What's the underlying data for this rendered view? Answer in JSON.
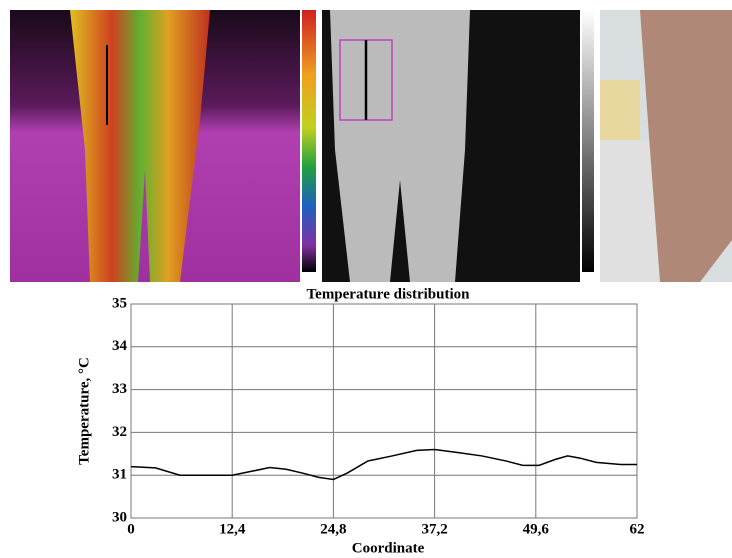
{
  "chart_data": {
    "type": "line",
    "title": "Temperature distribution",
    "x_label": "Coordinate",
    "y_label": "Temperature, °C",
    "x": [
      0,
      3,
      6,
      9,
      12.4,
      15,
      17,
      19,
      21,
      23,
      24.8,
      26.5,
      29,
      32,
      35,
      37.2,
      40,
      43,
      46,
      48,
      50,
      52,
      53.5,
      55,
      57,
      60,
      62
    ],
    "series": [
      {
        "color": "#000000",
        "values": [
          31.2,
          31.17,
          31.0,
          31.0,
          31.0,
          31.1,
          31.18,
          31.14,
          31.05,
          30.95,
          30.9,
          31.05,
          31.33,
          31.45,
          31.58,
          31.6,
          31.53,
          31.45,
          31.33,
          31.23,
          31.23,
          31.37,
          31.45,
          31.4,
          31.3,
          31.25,
          31.25
        ]
      }
    ],
    "xlim": [
      0,
      62
    ],
    "ylim": [
      30,
      35
    ],
    "xticks": [
      0,
      {
        "value": 12.4,
        "label": "12,4"
      },
      {
        "value": 24.8,
        "label": "24,8"
      },
      {
        "value": 37.2,
        "label": "37,2"
      },
      {
        "value": 49.6,
        "label": "49,6"
      },
      62
    ],
    "yticks": [
      30,
      31,
      32,
      33,
      34,
      35
    ],
    "grid": true
  }
}
